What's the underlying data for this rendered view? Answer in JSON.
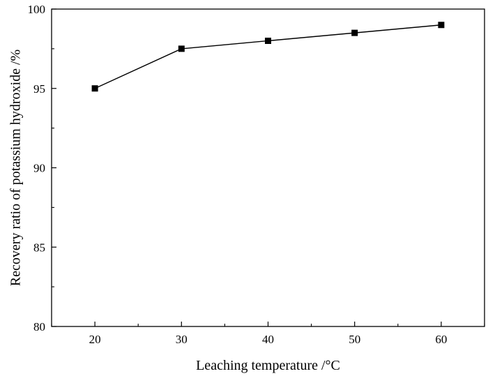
{
  "chart_data": {
    "type": "line",
    "title": "",
    "xlabel": "Leaching temperature  /°C",
    "ylabel": "Recovery ratio of potassium hydroxide /%",
    "x": [
      20,
      30,
      40,
      50,
      60
    ],
    "series": [
      {
        "values": [
          95.0,
          97.5,
          98.0,
          98.5,
          99.0
        ]
      }
    ],
    "xlim": [
      15,
      65
    ],
    "ylim": [
      80,
      100
    ],
    "xticks": [
      20,
      30,
      40,
      50,
      60
    ],
    "yticks": [
      80,
      85,
      90,
      95,
      100
    ],
    "marker": "square",
    "grid": false,
    "legend": "none",
    "colors": {
      "line": "#000000",
      "marker": "#000000",
      "axis": "#000000"
    }
  }
}
